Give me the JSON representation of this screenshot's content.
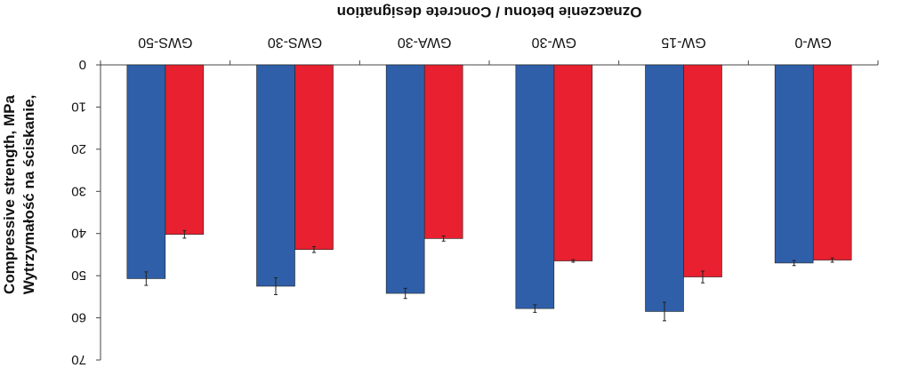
{
  "chart_data": {
    "type": "bar",
    "orientation": "rotated-180",
    "title": "",
    "xlabel": "Oznaczenie betonu / Concrete designation",
    "ylabel_lines": [
      "Wytrzymałość na ściskanie,",
      "Compressive strength, MPa"
    ],
    "categories": [
      "GW-0",
      "GW-15",
      "GW-30",
      "GWA-30",
      "GWS-30",
      "GWS-50"
    ],
    "yticks": [
      0,
      10,
      20,
      30,
      40,
      50,
      60,
      70
    ],
    "ylim": [
      0,
      70
    ],
    "grid": false,
    "series": [
      {
        "color": "#e8202f",
        "values": [
          46.3,
          50.3,
          46.5,
          41.2,
          43.8,
          40.2
        ],
        "errors": [
          0.5,
          1.4,
          0.3,
          0.6,
          0.7,
          0.9
        ]
      },
      {
        "color": "#2f5fa8",
        "values": [
          47.0,
          58.5,
          57.8,
          54.2,
          52.5,
          50.7
        ],
        "errors": [
          0.6,
          2.2,
          0.9,
          1.2,
          2.0,
          1.6
        ]
      }
    ]
  }
}
